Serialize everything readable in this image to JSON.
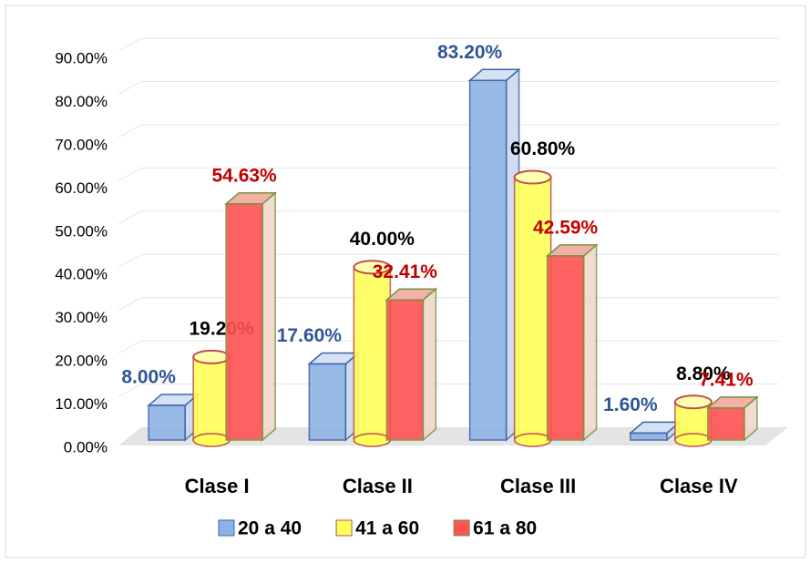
{
  "chart_data": {
    "type": "bar3d",
    "categories": [
      "Clase I",
      "Clase II",
      "Clase III",
      "Clase IV"
    ],
    "series": [
      {
        "name": "20 a 40",
        "color": "#8eb2e4",
        "label_color": "#2f5597",
        "values": [
          8.0,
          17.6,
          83.2,
          1.6
        ],
        "value_labels": [
          "8.00%",
          "17.60%",
          "83.20%",
          "1.60%"
        ]
      },
      {
        "name": "41 a 60",
        "color": "#ffff5a",
        "label_color": "#000000",
        "values": [
          19.2,
          40.0,
          60.8,
          8.8
        ],
        "value_labels": [
          "19.20%",
          "40.00%",
          "60.80%",
          "8.80%"
        ]
      },
      {
        "name": "61 a 80",
        "color": "#ff5252",
        "label_color": "#c00000",
        "values": [
          54.63,
          32.41,
          42.59,
          7.41
        ],
        "value_labels": [
          "54.63%",
          "32.41%",
          "42.59%",
          "7.41%"
        ]
      }
    ],
    "ylim": [
      0,
      90
    ],
    "yticks": [
      {
        "value": 0,
        "label": "0.00%"
      },
      {
        "value": 10,
        "label": "10.00%"
      },
      {
        "value": 20,
        "label": "20.00%"
      },
      {
        "value": 30,
        "label": "30.00%"
      },
      {
        "value": 40,
        "label": "40.00%"
      },
      {
        "value": 50,
        "label": "50.00%"
      },
      {
        "value": 60,
        "label": "60.00%"
      },
      {
        "value": 70,
        "label": "70.00%"
      },
      {
        "value": 80,
        "label": "80.00%"
      },
      {
        "value": 90,
        "label": "90.00%"
      }
    ],
    "grid": true,
    "legend": "bottom"
  }
}
